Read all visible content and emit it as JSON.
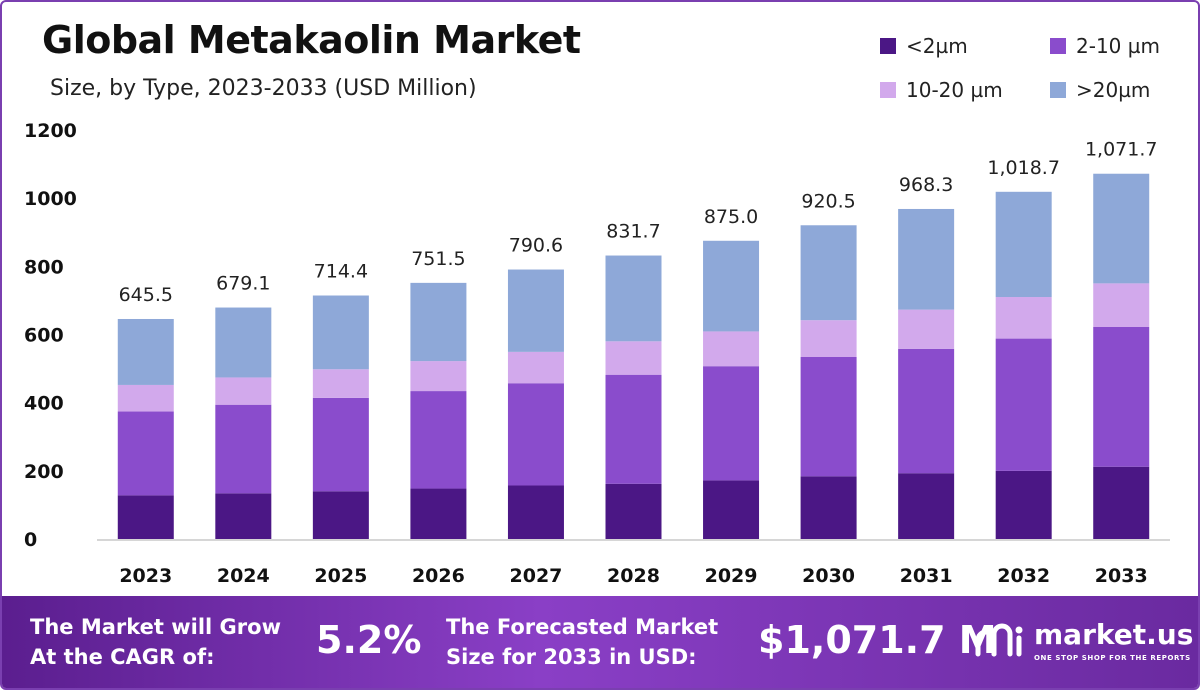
{
  "title": "Global Metakaolin Market",
  "subtitle": "Size, by Type, 2023-2033 (USD Million)",
  "colors": {
    "lt2": "#4b1785",
    "s2_10": "#8a4ccc",
    "s10_20": "#d2a9ec",
    "gt20": "#8ea8d8",
    "banner_start": "#5b1e8f",
    "banner_end": "#8a3fc6"
  },
  "banner": {
    "cagr_text_line1": "The Market will Grow",
    "cagr_text_line2": "At the CAGR of:",
    "cagr_value": "5.2%",
    "forecast_text_line1": "The Forecasted Market",
    "forecast_text_line2": "Size for 2033 in USD:",
    "forecast_value": "$1,071.7 M",
    "logo_name": "market.us",
    "logo_tagline": "ONE STOP SHOP FOR THE REPORTS"
  },
  "chart_data": {
    "type": "bar",
    "stacked": true,
    "categories": [
      "2023",
      "2024",
      "2025",
      "2026",
      "2027",
      "2028",
      "2029",
      "2030",
      "2031",
      "2032",
      "2033"
    ],
    "series": [
      {
        "name": "<2µm",
        "values": [
          128,
          134,
          140,
          148,
          157,
          162,
          172,
          184,
          193,
          200,
          212
        ]
      },
      {
        "name": "2-10 µm",
        "values": [
          246,
          260,
          274,
          286,
          300,
          320,
          335,
          350,
          365,
          388,
          410
        ]
      },
      {
        "name": "10-20 µm",
        "values": [
          78,
          80,
          84,
          88,
          92,
          98,
          102,
          108,
          115,
          122,
          128
        ]
      },
      {
        "name": ">20µm",
        "values": [
          193.5,
          205.1,
          216.4,
          229.5,
          241.6,
          251.7,
          266.0,
          278.5,
          295.3,
          308.7,
          321.7
        ]
      }
    ],
    "totals": [
      "645.5",
      "679.1",
      "714.4",
      "751.5",
      "790.6",
      "831.7",
      "875.0",
      "920.5",
      "968.3",
      "1,018.7",
      "1,071.7"
    ],
    "yticks": [
      "0",
      "200",
      "400",
      "600",
      "800",
      "1000",
      "1200"
    ],
    "ylim": [
      0,
      1200
    ],
    "xlabel": "",
    "ylabel": "",
    "legend_position": "top-right",
    "grid": false
  }
}
